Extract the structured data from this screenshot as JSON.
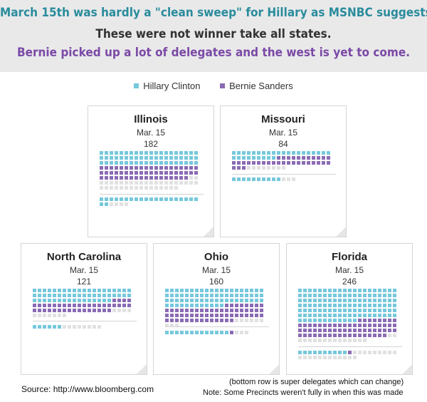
{
  "headline": {
    "line1": "March 15th was hardly a \"clean sweep\" for Hillary as MSNBC suggests.",
    "line2": "These were not winner take all states.",
    "line3": "Bernie picked up a lot of delegates and the west is yet to come.",
    "line1_color": "#2a8c9c",
    "line2_color": "#333333",
    "line3_color": "#7b4aa6"
  },
  "colors": {
    "clinton": "#76c8dc",
    "sanders": "#8a6bb4",
    "undecided": "#e1e1e1",
    "banner": "#e9e9ea"
  },
  "legend": [
    {
      "label": "Hillary Clinton",
      "color": "#76c8dc"
    },
    {
      "label": "Bernie Sanders",
      "color": "#8a6bb4"
    }
  ],
  "states": [
    {
      "name": "Illinois",
      "date": "Mar. 15",
      "delegates": "182",
      "pledged": {
        "clinton": 60,
        "sanders": 58,
        "remaining": 38
      },
      "super": {
        "clinton": 22,
        "sanders": 0,
        "remaining": 4
      }
    },
    {
      "name": "Missouri",
      "date": "Mar. 15",
      "delegates": "84",
      "pledged": {
        "clinton": 29,
        "sanders": 34,
        "remaining": 8
      },
      "super": {
        "clinton": 10,
        "sanders": 0,
        "remaining": 3
      }
    },
    {
      "name": "North Carolina",
      "date": "Mar. 15",
      "delegates": "121",
      "pledged": {
        "clinton": 56,
        "sanders": 40,
        "remaining": 11
      },
      "super": {
        "clinton": 6,
        "sanders": 0,
        "remaining": 8
      }
    },
    {
      "name": "Ohio",
      "date": "Mar. 15",
      "delegates": "160",
      "pledged": {
        "clinton": 72,
        "sanders": 62,
        "remaining": 9
      },
      "super": {
        "clinton": 13,
        "sanders": 1,
        "remaining": 3
      }
    },
    {
      "name": "Florida",
      "date": "Mar. 15",
      "delegates": "246",
      "pledged": {
        "clinton": 132,
        "sanders": 66,
        "remaining": 16
      },
      "super": {
        "clinton": 10,
        "sanders": 1,
        "remaining": 21
      }
    }
  ],
  "footer": {
    "source": "Source: http://www.bloomberg.com",
    "note1": "(bottom row is super delegates which can change)",
    "note2": "Note: Some Precincts weren't fully in when this was made"
  }
}
